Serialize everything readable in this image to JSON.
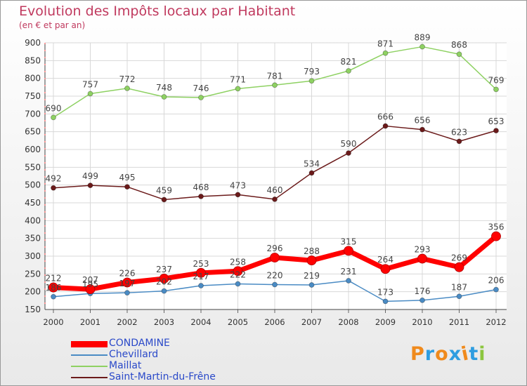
{
  "title": "Evolution des Impôts locaux par Habitant",
  "subtitle": "(en € et par an)",
  "logo": {
    "text": "Proxiti",
    "colors": [
      "#f08a1c",
      "#2e9de0",
      "#f08a1c",
      "#2e9de0",
      "#f08a1c",
      "#2e9de0",
      "#8cc63f"
    ]
  },
  "chart_data": {
    "type": "line",
    "x": [
      "2000",
      "2001",
      "2002",
      "2003",
      "2004",
      "2005",
      "2006",
      "2007",
      "2008",
      "2009",
      "2010",
      "2011",
      "2012"
    ],
    "ylim": [
      150,
      900
    ],
    "yticks": [
      150,
      200,
      250,
      300,
      350,
      400,
      450,
      500,
      550,
      600,
      650,
      700,
      750,
      800,
      850,
      900
    ],
    "grid": true,
    "legend_position": "bottom-left",
    "series": [
      {
        "name": "CONDAMINE",
        "color": "#ff0000",
        "values": [
          212,
          207,
          226,
          237,
          253,
          258,
          296,
          288,
          315,
          264,
          293,
          269,
          356
        ]
      },
      {
        "name": "Chevillard",
        "color": "#4a8bc4",
        "values": [
          186,
          195,
          197,
          202,
          217,
          222,
          220,
          219,
          231,
          173,
          176,
          187,
          206
        ]
      },
      {
        "name": "Maillat",
        "color": "#8ed162",
        "values": [
          690,
          757,
          772,
          748,
          746,
          771,
          781,
          793,
          821,
          871,
          889,
          868,
          769
        ]
      },
      {
        "name": "Saint-Martin-du-Frêne",
        "color": "#6b1a1a",
        "values": [
          492,
          499,
          495,
          459,
          468,
          473,
          460,
          534,
          590,
          666,
          656,
          623,
          653
        ]
      }
    ]
  }
}
